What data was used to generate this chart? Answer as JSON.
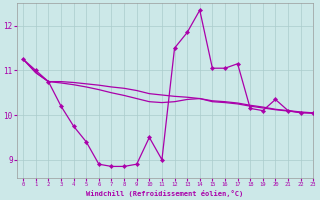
{
  "xlabel": "Windchill (Refroidissement éolien,°C)",
  "xlim": [
    -0.5,
    23
  ],
  "ylim": [
    8.6,
    12.5
  ],
  "yticks": [
    9,
    10,
    11,
    12
  ],
  "xticks": [
    0,
    1,
    2,
    3,
    4,
    5,
    6,
    7,
    8,
    9,
    10,
    11,
    12,
    13,
    14,
    15,
    16,
    17,
    18,
    19,
    20,
    21,
    22,
    23
  ],
  "bg_color": "#cce8e8",
  "grid_color": "#aacccc",
  "line_color": "#aa00aa",
  "line1_x": [
    0,
    1,
    2,
    3,
    4,
    5,
    6,
    7,
    8,
    9,
    10,
    11,
    12,
    13,
    14,
    15,
    16,
    17,
    18,
    19,
    20,
    21,
    22,
    23
  ],
  "line1_y": [
    11.25,
    11.0,
    10.75,
    10.2,
    9.75,
    9.4,
    8.9,
    8.85,
    8.85,
    8.9,
    9.5,
    9.0,
    11.5,
    11.85,
    12.35,
    11.05,
    11.05,
    11.15,
    10.15,
    10.1,
    10.35,
    10.1,
    10.05,
    10.05
  ],
  "line2_x": [
    0,
    1,
    2,
    3,
    4,
    5,
    6,
    7,
    8,
    9,
    10,
    11,
    12,
    13,
    14,
    15,
    16,
    17,
    18,
    19,
    20,
    21,
    22,
    23
  ],
  "line2_y": [
    11.25,
    10.95,
    10.75,
    10.75,
    10.73,
    10.7,
    10.67,
    10.63,
    10.6,
    10.55,
    10.48,
    10.45,
    10.42,
    10.4,
    10.37,
    10.32,
    10.3,
    10.27,
    10.22,
    10.18,
    10.13,
    10.1,
    10.07,
    10.05
  ],
  "line3_x": [
    0,
    1,
    2,
    3,
    4,
    5,
    6,
    7,
    8,
    9,
    10,
    11,
    12,
    13,
    14,
    15,
    16,
    17,
    18,
    19,
    20,
    21,
    22,
    23
  ],
  "line3_y": [
    11.25,
    10.95,
    10.75,
    10.72,
    10.68,
    10.63,
    10.57,
    10.5,
    10.44,
    10.37,
    10.3,
    10.28,
    10.3,
    10.35,
    10.37,
    10.3,
    10.28,
    10.25,
    10.2,
    10.16,
    10.12,
    10.09,
    10.06,
    10.04
  ]
}
